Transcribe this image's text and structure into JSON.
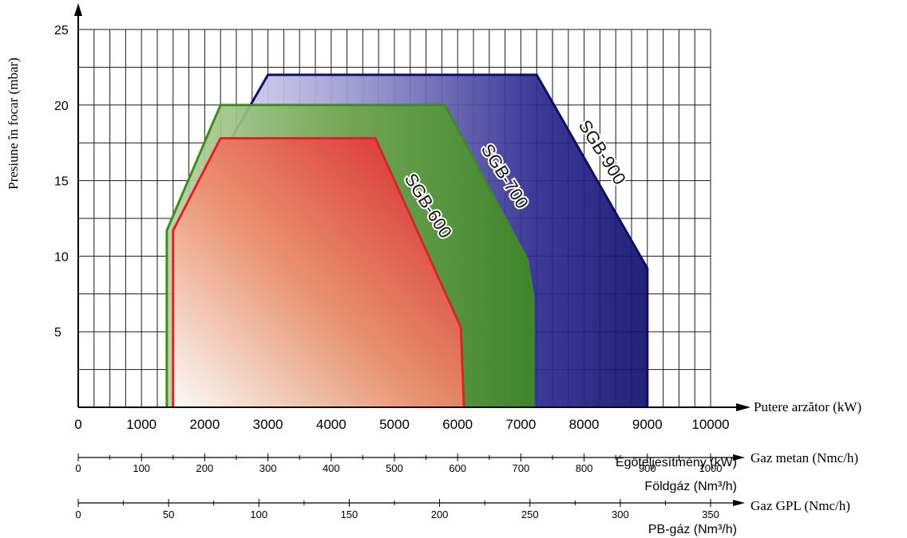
{
  "chart_data": {
    "type": "area",
    "title": "",
    "ylabel": "Presiune în focar (mbar)",
    "ylim": [
      0,
      25
    ],
    "yticks": [
      5,
      10,
      15,
      20,
      25
    ],
    "xlim": [
      0,
      10000
    ],
    "grid": true,
    "axes": [
      {
        "unit_label": "Putere arzător (kW)",
        "sub_label": "Égőteljesítmény (kW)",
        "range": [
          0,
          10000
        ],
        "ticks": [
          0,
          1000,
          2000,
          3000,
          4000,
          5000,
          6000,
          7000,
          8000,
          9000,
          10000
        ]
      },
      {
        "unit_label": "Gaz metan (Nmc/h)",
        "sub_label": "Földgáz (Nm³/h)",
        "range": [
          0,
          1000
        ],
        "ticks": [
          0,
          100,
          200,
          300,
          400,
          500,
          600,
          700,
          800,
          900,
          1000
        ]
      },
      {
        "unit_label": "Gaz GPL (Nmc/h)",
        "sub_label": "PB-gáz (Nm³/h)",
        "range": [
          0,
          350
        ],
        "ticks": [
          0,
          50,
          100,
          150,
          200,
          250,
          300,
          350
        ]
      }
    ],
    "series": [
      {
        "name": "SGB-900",
        "color": "#0d0d6b",
        "points": [
          [
            1800,
            0
          ],
          [
            1800,
            13.3
          ],
          [
            3000,
            22
          ],
          [
            7250,
            22
          ],
          [
            9000,
            9.2
          ],
          [
            9000,
            0
          ]
        ]
      },
      {
        "name": "SGB-700",
        "color": "#3e8c1e",
        "points": [
          [
            1400,
            0
          ],
          [
            1400,
            11.7
          ],
          [
            2250,
            20
          ],
          [
            5800,
            20
          ],
          [
            7100,
            9.8
          ],
          [
            7200,
            7.2
          ],
          [
            7200,
            0
          ]
        ]
      },
      {
        "name": "SGB-600",
        "color": "#e0202a",
        "points": [
          [
            1500,
            0
          ],
          [
            1500,
            11.7
          ],
          [
            2250,
            17.8
          ],
          [
            4700,
            17.8
          ],
          [
            6050,
            5.3
          ],
          [
            6100,
            0
          ]
        ]
      }
    ]
  }
}
